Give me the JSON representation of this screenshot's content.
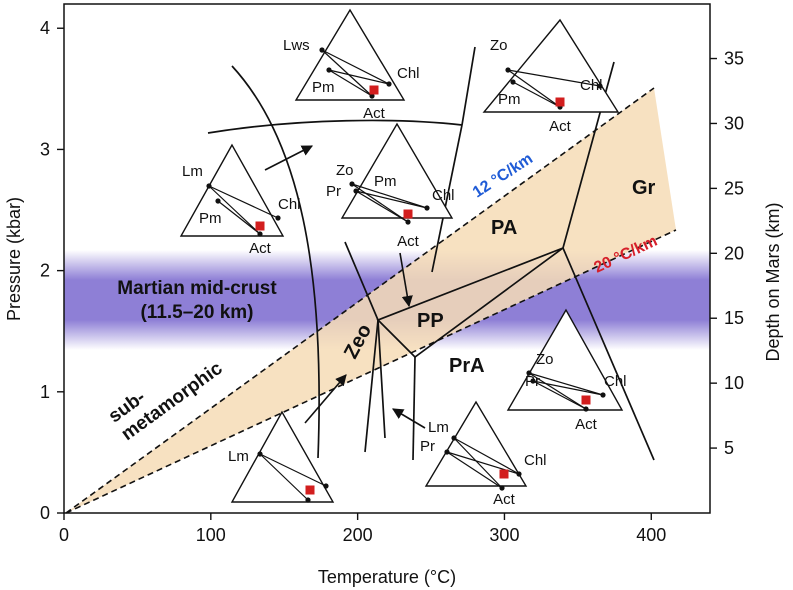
{
  "chart_data": {
    "type": "diagram",
    "xlabel": "Temperature (°C)",
    "ylabel": "Pressure (kbar)",
    "y2label": "Depth on Mars (km)",
    "xlim": [
      0,
      440
    ],
    "ylim": [
      0,
      4.2
    ],
    "x_ticks": [
      "0",
      "100",
      "200",
      "300",
      "400"
    ],
    "y_ticks": [
      "0",
      "1",
      "2",
      "3",
      "4"
    ],
    "y2_ticks": [
      "5",
      "10",
      "15",
      "20",
      "25",
      "30",
      "35"
    ],
    "band": {
      "label_line1": "Martian mid-crust",
      "label_line2": "(11.5–20 km)",
      "color": "#8e7fd6"
    },
    "gradients": [
      {
        "label": "12 °C/km",
        "color": "#1f5bd6"
      },
      {
        "label": "20 °C/km",
        "color": "#d6202a"
      }
    ],
    "wedge_color": "#f6dcb6",
    "submetamorphic": [
      "sub-",
      "metamorphic"
    ],
    "regions": [
      "Zeo",
      "PP",
      "PA",
      "PrA",
      "Gr"
    ],
    "minerals": {
      "Lws": "Lws",
      "Chl": "Chl",
      "Pm": "Pm",
      "Act": "Act",
      "Zo": "Zo",
      "Lm": "Lm",
      "Pr": "Pr"
    },
    "marker_color": "#d21e1e"
  }
}
